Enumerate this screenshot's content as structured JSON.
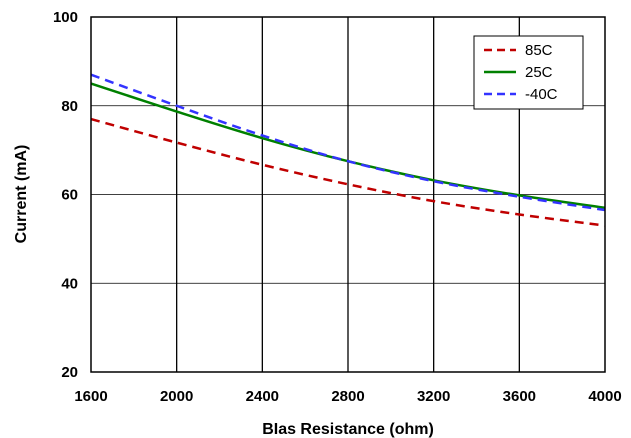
{
  "chart_data": {
    "type": "line",
    "xlabel": "BIas Resistance (ohm)",
    "ylabel": "Current (mA)",
    "xlim": [
      1600,
      4000
    ],
    "ylim": [
      20,
      100
    ],
    "x_ticks": [
      "1600",
      "2000",
      "2400",
      "2800",
      "3200",
      "3600",
      "4000"
    ],
    "y_ticks": [
      "20",
      "40",
      "60",
      "80",
      "100"
    ],
    "grid": true,
    "legend_position": "top-right",
    "x": [
      1600,
      2000,
      2400,
      2800,
      3200,
      3600,
      4000
    ],
    "series": [
      {
        "name": "85C",
        "color": "#c00000",
        "dash": "dashed",
        "values": [
          77,
          71.7,
          66.7,
          62.3,
          58.5,
          55.5,
          53
        ]
      },
      {
        "name": "25C",
        "color": "#008000",
        "dash": "solid",
        "values": [
          85,
          78.7,
          72.7,
          67.5,
          63.2,
          59.8,
          57
        ]
      },
      {
        "name": "-40C",
        "color": "#3333ff",
        "dash": "dashed",
        "values": [
          87,
          80,
          73.3,
          67.5,
          63,
          59.5,
          56.5
        ]
      }
    ]
  }
}
